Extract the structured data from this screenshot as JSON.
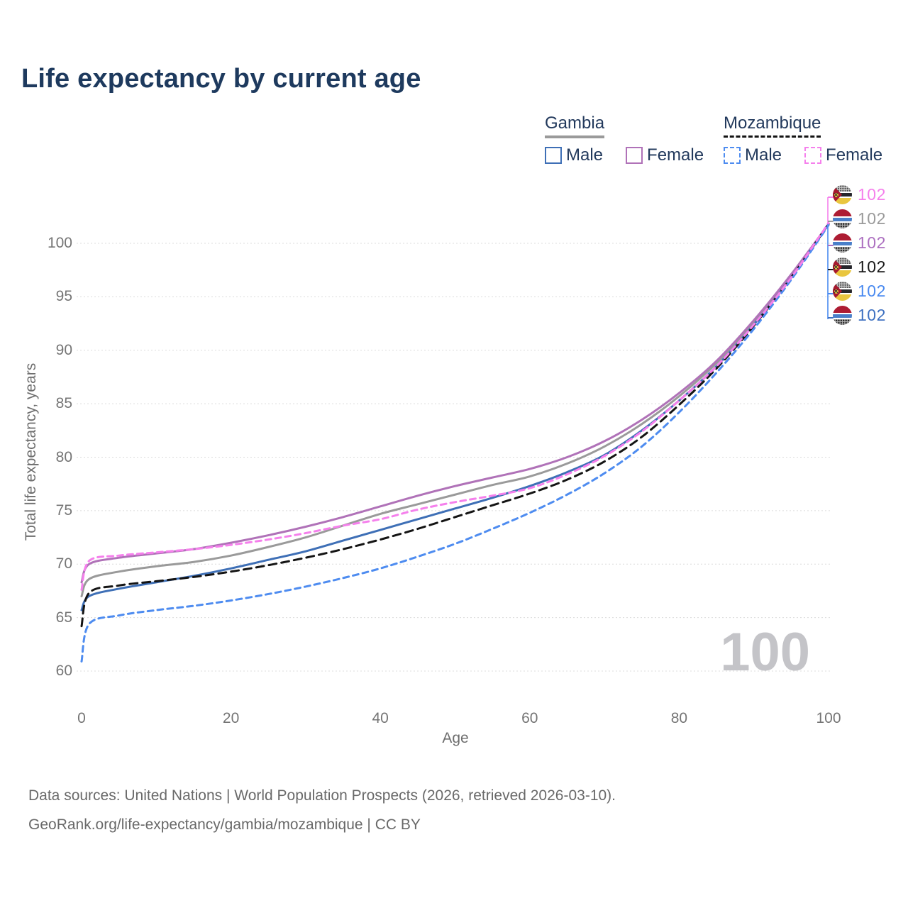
{
  "title": "Life expectancy by current age",
  "legend": {
    "gambia": {
      "label": "Gambia",
      "male": "Male",
      "female": "Female",
      "male_color": "#3e6fb6",
      "female_color": "#b072b8",
      "line_style": "solid"
    },
    "mozambique": {
      "label": "Mozambique",
      "male": "Male",
      "female": "Female",
      "male_color": "#4e8cf0",
      "female_color": "#f580ec",
      "line_style": "dashed"
    }
  },
  "watermark": "100",
  "end_labels": [
    {
      "flag": "mozambique",
      "series": "Mozambique Female",
      "value": "102",
      "color": "#f580ec"
    },
    {
      "flag": "gambia",
      "series": "Gambia Both sexes",
      "value": "102",
      "color": "#9a9a9a"
    },
    {
      "flag": "gambia",
      "series": "Gambia Female",
      "value": "102",
      "color": "#ac6fc0"
    },
    {
      "flag": "mozambique",
      "series": "Mozambique Both sexes",
      "value": "102",
      "color": "#1a1a1a"
    },
    {
      "flag": "mozambique",
      "series": "Mozambique Male",
      "value": "102",
      "color": "#4a8af0"
    },
    {
      "flag": "gambia",
      "series": "Gambia Male",
      "value": "102",
      "color": "#3f71c1"
    }
  ],
  "footer": {
    "line1": "Data sources: United Nations | World Population Prospects (2026, retrieved 2026-03-10).",
    "line2": "GeoRank.org/life-expectancy/gambia/mozambique | CC BY"
  },
  "chart_data": {
    "type": "line",
    "title": "Life expectancy by current age",
    "xlabel": "Age",
    "ylabel": "Total life expectancy, years",
    "xlim": [
      0,
      100
    ],
    "ylim": [
      60,
      103
    ],
    "xticks": [
      0,
      20,
      40,
      60,
      80,
      100
    ],
    "yticks": [
      60,
      65,
      70,
      75,
      80,
      85,
      90,
      95,
      100
    ],
    "grid": "horizontal-dotted",
    "legend_position": "top-right",
    "x_ages": [
      0,
      1,
      5,
      10,
      15,
      20,
      25,
      30,
      35,
      40,
      45,
      50,
      55,
      60,
      65,
      70,
      75,
      80,
      85,
      90,
      95,
      100
    ],
    "series": [
      {
        "name": "Gambia Both sexes",
        "country": "Gambia",
        "sex": "Both",
        "color": "#9a9a9a",
        "dashed": false,
        "end_value": 102,
        "values": [
          67.0,
          68.6,
          69.3,
          69.8,
          70.2,
          70.8,
          71.6,
          72.5,
          73.6,
          74.7,
          75.6,
          76.5,
          77.4,
          78.2,
          79.4,
          81.0,
          83.1,
          85.7,
          88.8,
          92.6,
          97.0,
          101.8
        ]
      },
      {
        "name": "Gambia Female",
        "country": "Gambia",
        "sex": "Female",
        "color": "#b072b8",
        "dashed": false,
        "end_value": 102,
        "values": [
          68.3,
          70.0,
          70.6,
          71.0,
          71.4,
          72.0,
          72.7,
          73.5,
          74.4,
          75.4,
          76.4,
          77.3,
          78.1,
          78.9,
          80.0,
          81.5,
          83.5,
          86.0,
          89.0,
          92.8,
          97.1,
          101.8
        ]
      },
      {
        "name": "Gambia Male",
        "country": "Gambia",
        "sex": "Male",
        "color": "#3e6fb6",
        "dashed": false,
        "end_value": 102,
        "values": [
          65.7,
          67.0,
          67.7,
          68.3,
          68.9,
          69.6,
          70.4,
          71.2,
          72.2,
          73.2,
          74.2,
          75.2,
          76.2,
          77.3,
          78.6,
          80.2,
          82.5,
          85.3,
          88.5,
          92.4,
          96.8,
          101.8
        ]
      },
      {
        "name": "Mozambique Both sexes",
        "country": "Mozambique",
        "sex": "Both",
        "color": "#141414",
        "dashed": true,
        "end_value": 102,
        "values": [
          64.2,
          67.3,
          68.0,
          68.4,
          68.8,
          69.3,
          69.9,
          70.6,
          71.4,
          72.3,
          73.3,
          74.4,
          75.5,
          76.6,
          77.9,
          79.6,
          81.9,
          84.9,
          88.3,
          92.3,
          96.8,
          101.8
        ]
      },
      {
        "name": "Mozambique Male",
        "country": "Mozambique",
        "sex": "Male",
        "color": "#4e8cf0",
        "dashed": true,
        "end_value": 102,
        "values": [
          60.9,
          64.4,
          65.2,
          65.7,
          66.1,
          66.6,
          67.2,
          67.9,
          68.7,
          69.6,
          70.7,
          71.9,
          73.3,
          74.8,
          76.5,
          78.5,
          81.0,
          84.2,
          87.9,
          92.0,
          96.6,
          101.7
        ]
      },
      {
        "name": "Mozambique Female",
        "country": "Mozambique",
        "sex": "Female",
        "color": "#f580ec",
        "dashed": true,
        "end_value": 102,
        "values": [
          67.6,
          70.3,
          70.8,
          71.1,
          71.4,
          71.8,
          72.3,
          72.9,
          73.6,
          74.2,
          75.1,
          75.8,
          76.4,
          77.1,
          78.4,
          80.1,
          82.4,
          85.3,
          88.5,
          92.4,
          96.8,
          101.9
        ]
      }
    ]
  }
}
